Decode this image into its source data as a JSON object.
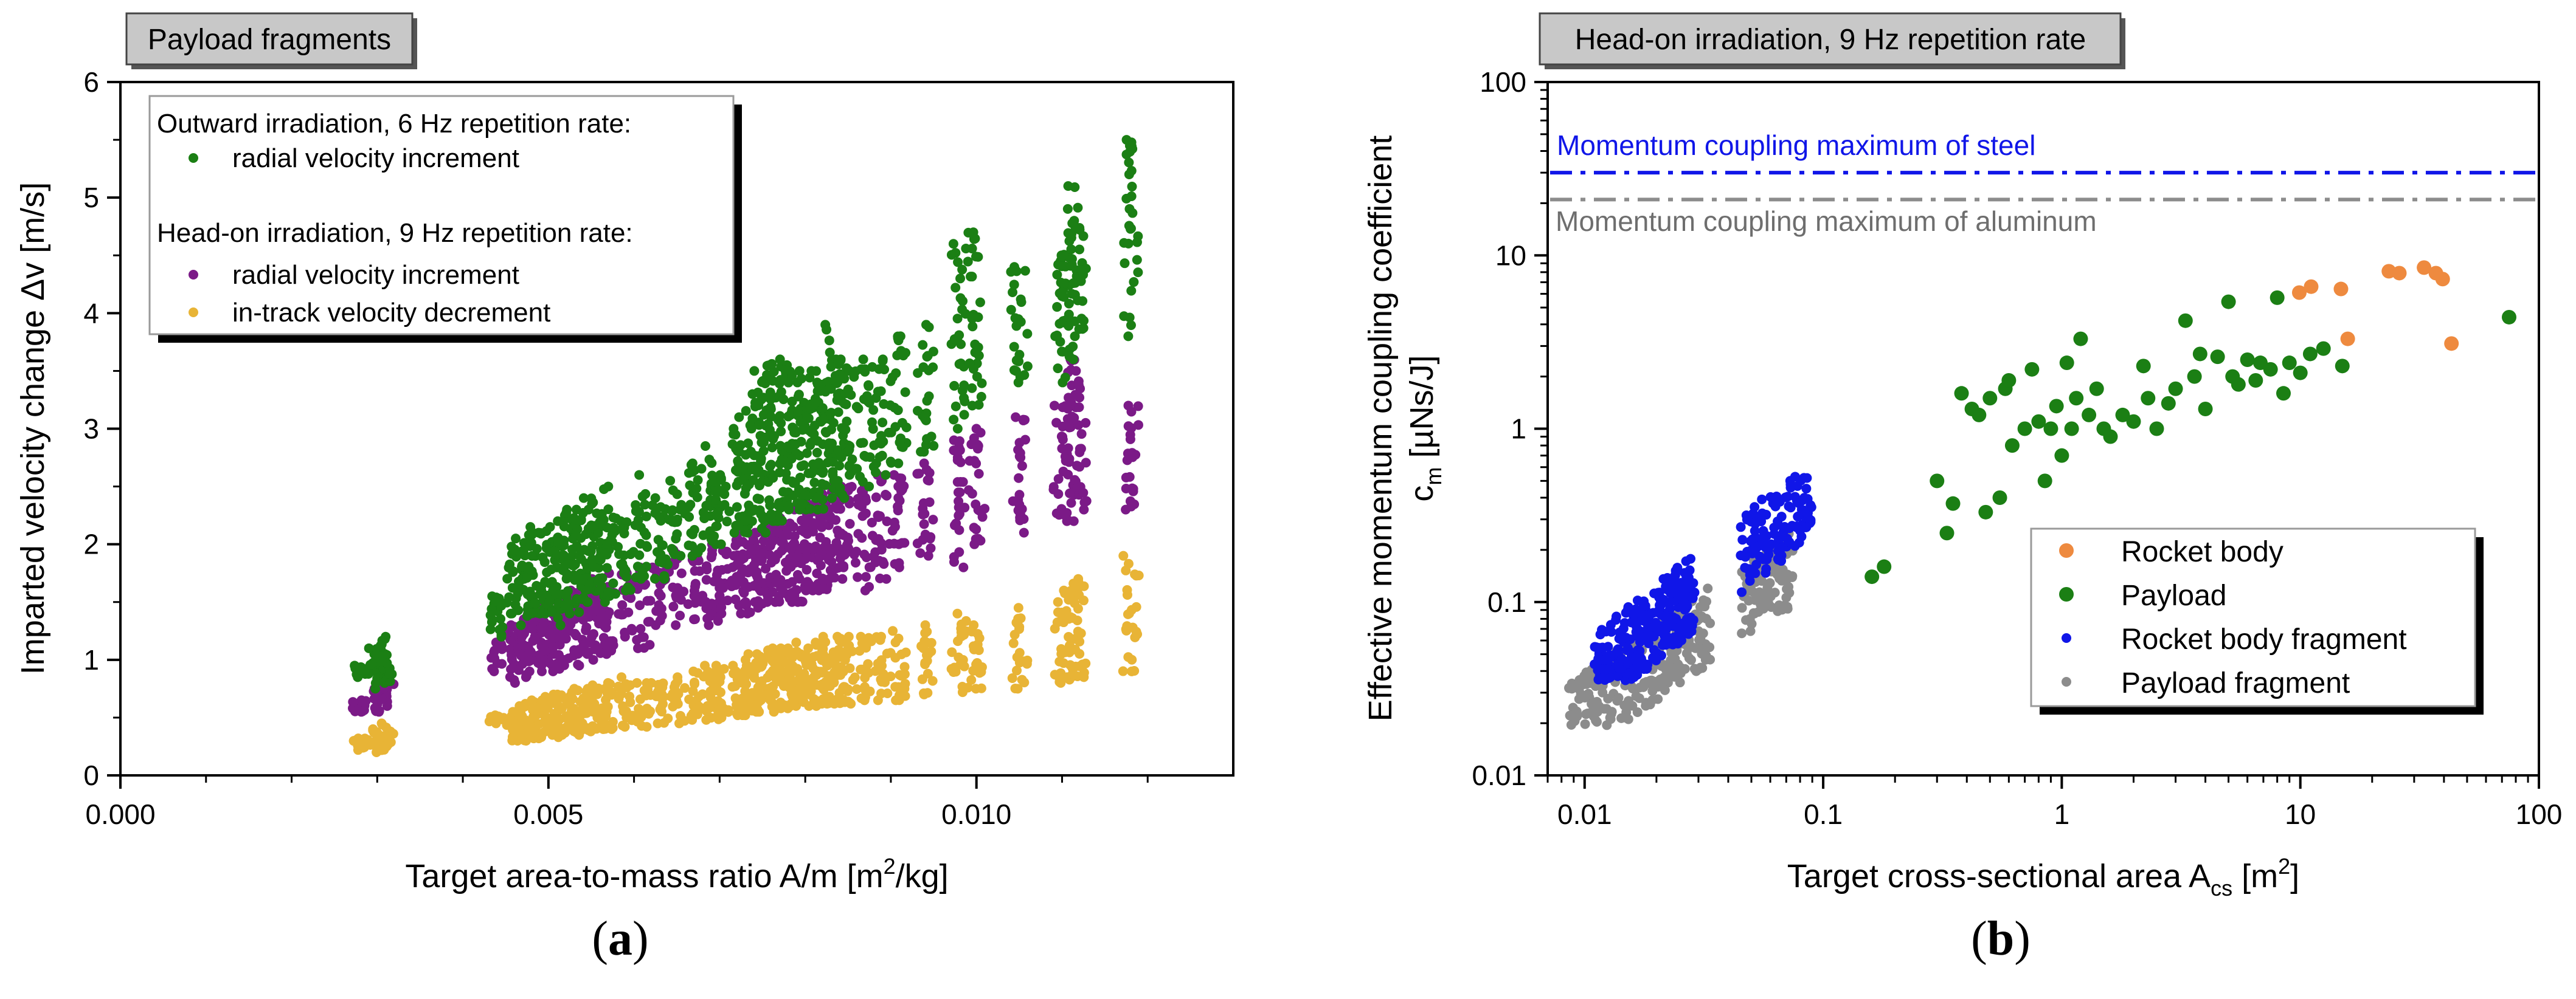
{
  "captions": {
    "a_open": "(",
    "a_letter": "a",
    "a_close": ")",
    "b_open": "(",
    "b_letter": "b",
    "b_close": ")"
  },
  "colors": {
    "green": "#1b7f14",
    "purple": "#7b1a87",
    "yellow": "#e8b436",
    "orange": "#ee8a3f",
    "blue": "#1016e8",
    "grey": "#8c8c8c",
    "tag_bg": "#c8c8c8"
  },
  "chart_data": [
    {
      "type": "scatter",
      "tag": "Payload fragments",
      "title": "",
      "xlabel_main": "Target area-to-mass ratio A/m [m",
      "xlabel_sup": "2",
      "xlabel_end": "/kg]",
      "ylabel": "Imparted velocity change Δv [m/s]",
      "xlim": [
        0.0,
        0.013
      ],
      "ylim": [
        0,
        6
      ],
      "xticks": [
        0.0,
        0.005,
        0.01
      ],
      "xtick_labels": [
        "0.000",
        "0.005",
        "0.010"
      ],
      "yticks": [
        0,
        1,
        2,
        3,
        4,
        5,
        6
      ],
      "ytick_labels": [
        "0",
        "1",
        "2",
        "3",
        "4",
        "5",
        "6"
      ],
      "legend": {
        "placement": "top-left",
        "group1_title": "Outward irradiation, 6 Hz repetition rate:",
        "group2_title": "Head-on irradiation, 9 Hz repetition rate:",
        "entries": [
          {
            "series": "outward_radial",
            "label": "radial velocity increment"
          },
          {
            "series": "headon_radial",
            "label": "radial velocity increment"
          },
          {
            "series": "headon_intrack",
            "label": "in-track velocity decrement"
          }
        ]
      },
      "x_columns": [
        0.0028,
        0.003,
        0.0031,
        0.0044,
        0.0046,
        0.0047,
        0.0048,
        0.0049,
        0.005,
        0.0051,
        0.0052,
        0.0053,
        0.0054,
        0.0055,
        0.0056,
        0.0057,
        0.0059,
        0.0061,
        0.0063,
        0.0065,
        0.0067,
        0.0069,
        0.007,
        0.0072,
        0.0073,
        0.0074,
        0.0075,
        0.0076,
        0.0077,
        0.0078,
        0.0079,
        0.008,
        0.0081,
        0.0082,
        0.0083,
        0.0084,
        0.0085,
        0.0087,
        0.0089,
        0.0091,
        0.0094,
        0.0098,
        0.01,
        0.0105,
        0.011,
        0.0111,
        0.0112,
        0.0118
      ],
      "series": [
        {
          "key": "outward_radial",
          "name": "radial velocity increment",
          "color": "#1b7f14",
          "lo": [
            0.85,
            0.75,
            0.8,
            1.2,
            1.4,
            1.3,
            1.4,
            1.4,
            1.4,
            1.3,
            1.5,
            1.4,
            1.5,
            1.5,
            1.6,
            1.5,
            1.6,
            1.7,
            1.7,
            1.9,
            1.9,
            2.0,
            2.0,
            2.1,
            2.1,
            2.2,
            2.1,
            2.2,
            2.2,
            2.3,
            2.3,
            2.3,
            2.4,
            2.3,
            2.4,
            2.4,
            2.6,
            2.5,
            2.6,
            2.7,
            2.8,
            3.0,
            3.2,
            3.4,
            3.4,
            3.6,
            3.8,
            3.8
          ],
          "hi": [
            0.95,
            1.1,
            1.2,
            1.55,
            1.98,
            2.05,
            2.15,
            2.1,
            2.15,
            2.2,
            2.25,
            2.3,
            2.3,
            2.4,
            2.35,
            2.5,
            2.2,
            2.6,
            2.4,
            2.55,
            2.7,
            2.85,
            2.6,
            3.0,
            3.1,
            3.3,
            3.5,
            3.55,
            3.6,
            3.55,
            3.4,
            3.5,
            3.5,
            3.4,
            3.9,
            3.6,
            3.6,
            3.6,
            3.6,
            3.8,
            3.9,
            4.6,
            4.7,
            4.4,
            4.5,
            5.1,
            4.8,
            5.5
          ]
        },
        {
          "key": "headon_radial",
          "name": "radial velocity increment",
          "color": "#7b1a87",
          "lo": [
            0.55,
            0.55,
            0.6,
            0.9,
            0.8,
            0.85,
            0.9,
            0.9,
            0.95,
            0.9,
            1.0,
            0.95,
            1.05,
            1.0,
            1.1,
            1.05,
            1.2,
            1.1,
            1.3,
            1.3,
            1.35,
            1.3,
            1.4,
            1.4,
            1.4,
            1.45,
            1.5,
            1.5,
            1.55,
            1.5,
            1.5,
            1.6,
            1.6,
            1.6,
            1.7,
            1.7,
            1.8,
            1.6,
            1.7,
            1.8,
            1.9,
            1.8,
            2.0,
            2.1,
            2.2,
            2.2,
            2.3,
            2.3
          ],
          "hi": [
            0.65,
            0.75,
            0.8,
            1.15,
            1.3,
            1.35,
            1.4,
            1.45,
            1.5,
            1.5,
            1.5,
            1.6,
            1.6,
            1.6,
            1.7,
            1.75,
            1.75,
            1.8,
            1.8,
            1.95,
            1.95,
            1.95,
            2.0,
            2.05,
            2.1,
            2.1,
            2.1,
            2.15,
            2.25,
            2.2,
            2.3,
            2.3,
            2.35,
            2.4,
            2.5,
            2.5,
            2.5,
            2.5,
            2.6,
            2.6,
            2.7,
            2.9,
            3.0,
            3.1,
            3.2,
            3.6,
            3.5,
            3.2
          ]
        },
        {
          "key": "headon_intrack",
          "name": "in-track velocity decrement",
          "color": "#e8b436",
          "lo": [
            0.22,
            0.2,
            0.22,
            0.45,
            0.3,
            0.3,
            0.32,
            0.32,
            0.35,
            0.33,
            0.35,
            0.35,
            0.38,
            0.38,
            0.4,
            0.4,
            0.42,
            0.42,
            0.45,
            0.45,
            0.48,
            0.48,
            0.5,
            0.52,
            0.52,
            0.55,
            0.55,
            0.55,
            0.58,
            0.58,
            0.6,
            0.6,
            0.6,
            0.62,
            0.62,
            0.62,
            0.62,
            0.65,
            0.65,
            0.65,
            0.7,
            0.72,
            0.75,
            0.75,
            0.8,
            0.85,
            0.85,
            0.9
          ],
          "hi": [
            0.32,
            0.4,
            0.45,
            0.52,
            0.55,
            0.6,
            0.62,
            0.65,
            0.68,
            0.7,
            0.7,
            0.72,
            0.75,
            0.75,
            0.78,
            0.8,
            0.85,
            0.8,
            0.8,
            0.85,
            0.9,
            0.95,
            0.95,
            0.95,
            1.0,
            1.05,
            1.05,
            1.1,
            1.1,
            1.1,
            1.15,
            1.05,
            1.1,
            1.15,
            1.2,
            1.2,
            1.2,
            1.2,
            1.2,
            1.25,
            1.3,
            1.4,
            1.3,
            1.45,
            1.5,
            1.6,
            1.7,
            1.9
          ]
        }
      ]
    },
    {
      "type": "scatter",
      "xscale": "log",
      "yscale": "log",
      "tag": "Head-on irradiation, 9 Hz repetition rate",
      "title": "",
      "xlabel_main": "Target cross-sectional area A",
      "xlabel_sub": "cs",
      "xlabel_mid": " [m",
      "xlabel_sup": "2",
      "xlabel_end": "]",
      "ylabel_line1": "Effective momentum coupling coefficient",
      "ylabel_line2": "c",
      "ylabel_line2_sub": "m",
      "ylabel_line2_end": " [µNs/J]",
      "xlim": [
        0.007,
        100
      ],
      "ylim": [
        0.01,
        100
      ],
      "xticks": [
        0.01,
        0.1,
        1,
        10,
        100
      ],
      "xtick_labels": [
        "0.01",
        "0.1",
        "1",
        "10",
        "100"
      ],
      "yticks": [
        0.01,
        0.1,
        1,
        10,
        100
      ],
      "ytick_labels": [
        "0.01",
        "0.1",
        "1",
        "10",
        "100"
      ],
      "reference_lines": [
        {
          "label": "Momentum coupling maximum of steel",
          "y": 30,
          "color": "#1016e8",
          "style": "dash-dot"
        },
        {
          "label": "Momentum coupling maximum of aluminum",
          "y": 21,
          "color": "#8c8c8c",
          "style": "dash-dot"
        }
      ],
      "legend": {
        "placement": "bottom-right",
        "entries": [
          {
            "series": "rocket_body",
            "label": "Rocket body"
          },
          {
            "series": "payload",
            "label": "Payload"
          },
          {
            "series": "rocket_body_fragment",
            "label": "Rocket body fragment"
          },
          {
            "series": "payload_fragment",
            "label": "Payload fragment"
          }
        ]
      },
      "series": [
        {
          "key": "rocket_body",
          "name": "Rocket body",
          "color": "#ee8a3f",
          "size": "large",
          "points": [
            [
              9.9,
              6.1
            ],
            [
              14.8,
              6.4
            ],
            [
              15.8,
              3.3
            ],
            [
              23.5,
              8.1
            ],
            [
              26,
              7.9
            ],
            [
              33,
              8.5
            ],
            [
              37,
              7.9
            ],
            [
              39.5,
              7.3
            ],
            [
              43,
              3.1
            ],
            [
              11.1,
              6.6
            ]
          ]
        },
        {
          "key": "payload",
          "name": "Payload",
          "color": "#1b7f14",
          "size": "large",
          "points": [
            [
              0.16,
              0.14
            ],
            [
              0.18,
              0.16
            ],
            [
              0.3,
              0.5
            ],
            [
              0.33,
              0.25
            ],
            [
              0.35,
              0.37
            ],
            [
              0.38,
              1.6
            ],
            [
              0.42,
              1.3
            ],
            [
              0.45,
              1.2
            ],
            [
              0.5,
              1.5
            ],
            [
              0.55,
              0.4
            ],
            [
              0.58,
              1.7
            ],
            [
              0.62,
              0.8
            ],
            [
              0.7,
              1.0
            ],
            [
              0.75,
              2.2
            ],
            [
              0.85,
              0.5
            ],
            [
              0.9,
              1.0
            ],
            [
              1.0,
              0.7
            ],
            [
              1.05,
              2.4
            ],
            [
              1.1,
              1.0
            ],
            [
              1.15,
              1.5
            ],
            [
              1.2,
              3.3
            ],
            [
              1.3,
              1.2
            ],
            [
              1.5,
              1.0
            ],
            [
              1.8,
              1.2
            ],
            [
              2.0,
              1.1
            ],
            [
              2.3,
              1.5
            ],
            [
              2.5,
              1.0
            ],
            [
              2.8,
              1.4
            ],
            [
              3.0,
              1.7
            ],
            [
              3.3,
              4.2
            ],
            [
              3.6,
              2.0
            ],
            [
              4.0,
              1.3
            ],
            [
              4.5,
              2.6
            ],
            [
              5.0,
              5.4
            ],
            [
              5.5,
              1.8
            ],
            [
              6.0,
              2.5
            ],
            [
              6.5,
              1.9
            ],
            [
              7.5,
              2.2
            ],
            [
              8.0,
              5.7
            ],
            [
              9.0,
              2.4
            ],
            [
              10.0,
              2.1
            ],
            [
              11.0,
              2.7
            ],
            [
              12.5,
              2.9
            ],
            [
              15.0,
              2.3
            ],
            [
              75.0,
              4.4
            ],
            [
              0.6,
              1.9
            ],
            [
              0.95,
              1.35
            ],
            [
              1.4,
              1.7
            ],
            [
              2.2,
              2.3
            ],
            [
              3.8,
              2.7
            ],
            [
              5.2,
              2.0
            ],
            [
              6.8,
              2.4
            ],
            [
              8.5,
              1.6
            ],
            [
              1.6,
              0.9
            ],
            [
              0.48,
              0.33
            ],
            [
              0.8,
              1.1
            ]
          ]
        },
        {
          "key": "rocket_body_fragment",
          "name": "Rocket body fragment",
          "color": "#1016e8",
          "size": "small",
          "range_x": [
            0.009,
            0.09
          ],
          "range_y": [
            0.035,
            0.62
          ]
        },
        {
          "key": "payload_fragment",
          "name": "Payload fragment",
          "color": "#8c8c8c",
          "size": "small",
          "range_x": [
            0.0085,
            0.075
          ],
          "range_y": [
            0.019,
            0.3
          ]
        }
      ]
    }
  ]
}
